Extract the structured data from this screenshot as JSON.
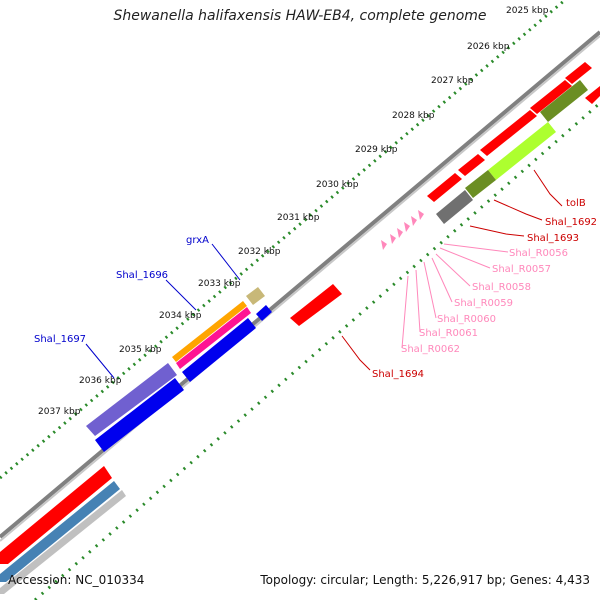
{
  "title": "Shewanella halifaxensis HAW-EB4, complete genome",
  "accession": "Accession: NC_010334",
  "summary": "Topology: circular; Length: 5,226,917 bp; Genes: 4,433",
  "kbp_ticks": [
    "2025 kbp",
    "2026 kbp",
    "2027 kbp",
    "2028 kbp",
    "2029 kbp",
    "2030 kbp",
    "2031 kbp",
    "2032 kbp",
    "2033 kbp",
    "2034 kbp",
    "2035 kbp",
    "2036 kbp",
    "2037 kbp"
  ],
  "gene_labels": {
    "blue": [
      "grxA",
      "Shal_1696",
      "Shal_1697"
    ],
    "red": [
      "tolB",
      "Shal_1692",
      "Shal_1693",
      "Shal_1694"
    ],
    "pink": [
      "Shal_R0056",
      "Shal_R0057",
      "Shal_R0058",
      "Shal_R0059",
      "Shal_R0060",
      "Shal_R0061",
      "Shal_R0062"
    ]
  },
  "colors": {
    "cds": "#ff0000",
    "backbone": "#808080",
    "tick_green": "#2a8a2a",
    "blue_label": "#0000cc",
    "red_label": "#cc0000",
    "pink_label": "#ff88bb",
    "orange": "#ffa500",
    "magenta": "#ff1493",
    "tan": "#c8b878",
    "purple": "#7060d0",
    "blue": "#0000ee",
    "steel": "#4682b4",
    "olive": "#6b8e23",
    "lime": "#adff2f",
    "gray": "#707070"
  }
}
